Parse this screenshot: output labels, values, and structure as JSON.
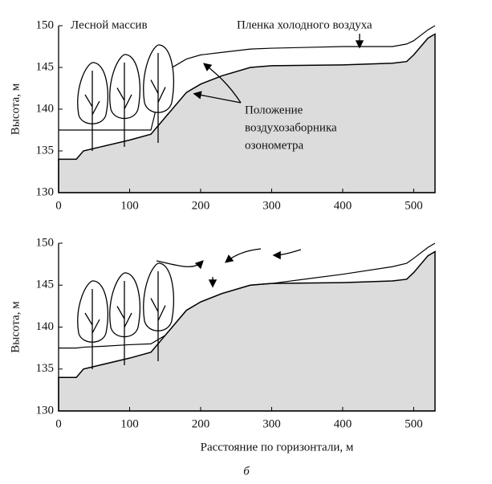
{
  "chart_data": [
    {
      "type": "area",
      "ylabel": "Высота, м",
      "annotations": [
        "Лесной массив",
        "Пленка холодного воздуха",
        "Положение",
        "воздухозаборника",
        "озонометра"
      ],
      "x": [
        0,
        25,
        35,
        60,
        100,
        130,
        150,
        180,
        200,
        230,
        270,
        300,
        400,
        470,
        490,
        500,
        520,
        530
      ],
      "series": [
        {
          "color": "#dcdcdc",
          "values": [
            134,
            134,
            135,
            135.5,
            136.3,
            137,
            139,
            142,
            143,
            144,
            145,
            145.2,
            145.3,
            145.5,
            145.7,
            146.5,
            148.5,
            149
          ]
        },
        {
          "color": "#000000",
          "values": [
            137.5,
            137.5,
            137.5,
            137.5,
            137.5,
            137.5,
            144.5,
            146,
            146.5,
            146.8,
            147.2,
            147.3,
            147.5,
            147.5,
            147.8,
            148.2,
            149.5,
            150
          ]
        }
      ],
      "xlim": [
        0,
        530
      ],
      "ylim": [
        130,
        150
      ],
      "xticks": [
        0,
        100,
        200,
        300,
        400,
        500
      ],
      "yticks": [
        130,
        135,
        140,
        145,
        150
      ]
    },
    {
      "type": "area",
      "ylabel": "Высота, м",
      "xlabel": "Расстояние по горизонтали, м",
      "x": [
        0,
        25,
        35,
        60,
        100,
        130,
        150,
        180,
        200,
        230,
        270,
        300,
        400,
        470,
        490,
        500,
        520,
        530
      ],
      "series": [
        {
          "color": "#dcdcdc",
          "values": [
            134,
            134,
            135,
            135.5,
            136.3,
            137,
            139,
            142,
            143,
            144,
            145,
            145.2,
            145.3,
            145.5,
            145.7,
            146.5,
            148.5,
            149
          ]
        },
        {
          "color": "#000000",
          "values": [
            137.5,
            137.5,
            137.6,
            137.7,
            137.9,
            138,
            139,
            142,
            143,
            144,
            145,
            145.2,
            146.3,
            147.2,
            147.6,
            148.2,
            149.5,
            150
          ]
        }
      ],
      "xlim": [
        0,
        530
      ],
      "ylim": [
        130,
        150
      ],
      "xticks": [
        0,
        100,
        200,
        300,
        400,
        500
      ],
      "yticks": [
        130,
        135,
        140,
        145,
        150
      ]
    }
  ],
  "caption": "б"
}
